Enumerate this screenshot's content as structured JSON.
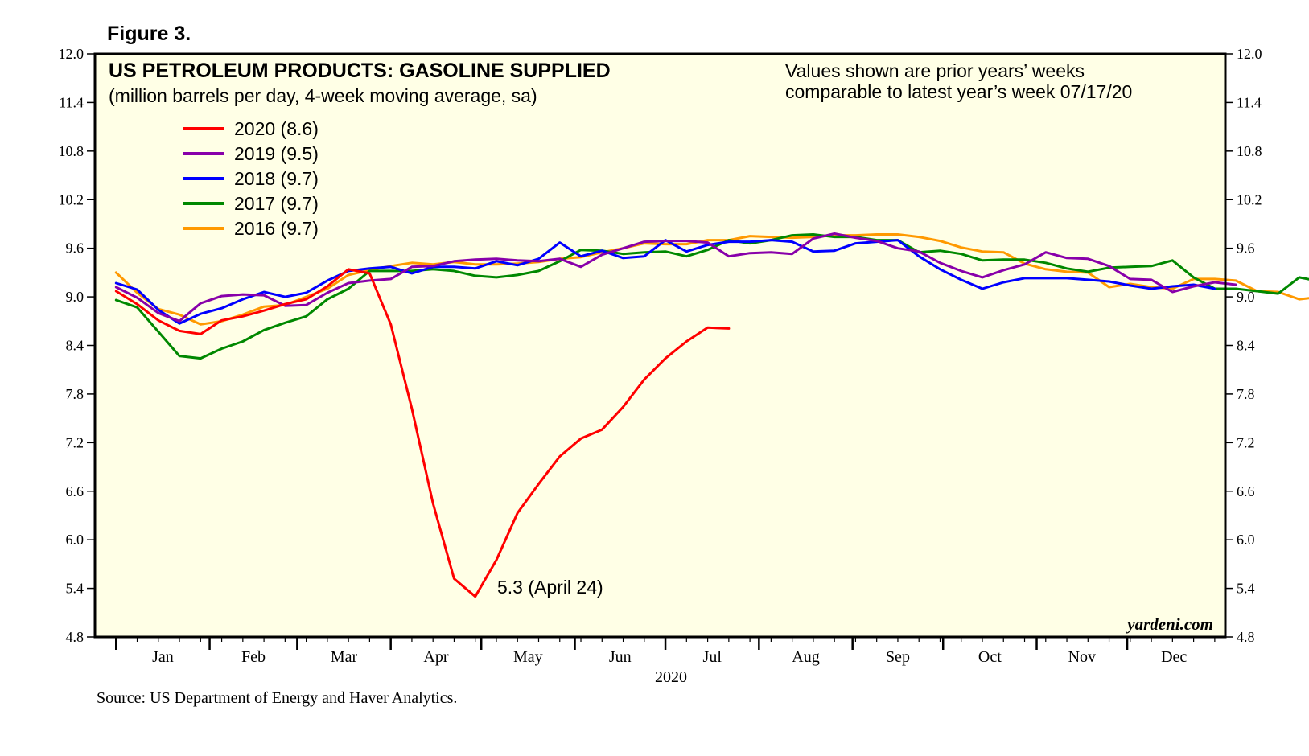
{
  "figure_label": "Figure 3.",
  "source": "Source: US Department of Energy and Haver Analytics.",
  "brand": "yardeni.com",
  "colors": {
    "plot_background": "#FFFFE6",
    "axis": "#000000"
  },
  "chart_data": {
    "type": "line",
    "title": "US PETROLEUM PRODUCTS: GASOLINE SUPPLIED",
    "subtitle": "(million barrels per day, 4-week moving average, sa)",
    "note": [
      "Values shown are prior years’ weeks",
      "comparable to latest year’s week 07/17/20"
    ],
    "annotation": {
      "text": "5.3 (April 24)",
      "week": 17,
      "value": 5.3
    },
    "xlabel": "2020",
    "x_unit": "week of year",
    "xlim": [
      0,
      53.5
    ],
    "ylim": [
      4.8,
      12.0
    ],
    "yticks": [
      "4.8",
      "5.4",
      "6.0",
      "6.6",
      "7.2",
      "7.8",
      "8.4",
      "9.0",
      "9.6",
      "10.2",
      "10.8",
      "11.4",
      "12.0"
    ],
    "months": [
      "Jan",
      "Feb",
      "Mar",
      "Apr",
      "May",
      "Jun",
      "Jul",
      "Aug",
      "Sep",
      "Oct",
      "Nov",
      "Dec"
    ],
    "legend": {
      "placement": "top-left"
    },
    "grid": false,
    "series": [
      {
        "name": "2016 (9.7)",
        "color": "#FF9900",
        "start_week": 1,
        "values": [
          9.3,
          9.05,
          8.85,
          8.78,
          8.66,
          8.7,
          8.78,
          8.88,
          8.9,
          9.0,
          9.1,
          9.27,
          9.33,
          9.38,
          9.42,
          9.4,
          9.43,
          9.4,
          9.4,
          9.41,
          9.43,
          9.47,
          9.49,
          9.55,
          9.6,
          9.66,
          9.65,
          9.65,
          9.7,
          9.7,
          9.75,
          9.74,
          9.73,
          9.74,
          9.76,
          9.76,
          9.77,
          9.77,
          9.74,
          9.69,
          9.61,
          9.56,
          9.55,
          9.41,
          9.34,
          9.31,
          9.3,
          9.12,
          9.16,
          9.12,
          9.1,
          9.22,
          9.22,
          9.2,
          9.07,
          9.06,
          8.97,
          9.0,
          9.05
        ]
      },
      {
        "name": "2017 (9.7)",
        "color": "#008800",
        "start_week": 1,
        "values": [
          8.96,
          8.87,
          8.57,
          8.27,
          8.24,
          8.36,
          8.45,
          8.59,
          8.68,
          8.76,
          8.97,
          9.1,
          9.32,
          9.32,
          9.32,
          9.34,
          9.32,
          9.26,
          9.24,
          9.27,
          9.32,
          9.44,
          9.58,
          9.57,
          9.53,
          9.55,
          9.56,
          9.5,
          9.58,
          9.7,
          9.66,
          9.7,
          9.76,
          9.77,
          9.74,
          9.74,
          9.7,
          9.7,
          9.55,
          9.57,
          9.53,
          9.45,
          9.46,
          9.46,
          9.42,
          9.35,
          9.31,
          9.36,
          9.37,
          9.38,
          9.45,
          9.24,
          9.1,
          9.1,
          9.07,
          9.04,
          9.24,
          9.19
        ]
      },
      {
        "name": "2018 (9.7)",
        "color": "#0000FF",
        "start_week": 1,
        "values": [
          9.17,
          9.09,
          8.84,
          8.67,
          8.79,
          8.86,
          8.97,
          9.06,
          9.0,
          9.05,
          9.2,
          9.32,
          9.35,
          9.37,
          9.29,
          9.37,
          9.37,
          9.35,
          9.44,
          9.39,
          9.47,
          9.67,
          9.5,
          9.57,
          9.48,
          9.5,
          9.7,
          9.56,
          9.64,
          9.68,
          9.68,
          9.7,
          9.68,
          9.56,
          9.57,
          9.66,
          9.68,
          9.7,
          9.5,
          9.34,
          9.21,
          9.1,
          9.18,
          9.23,
          9.23,
          9.23,
          9.21,
          9.19,
          9.14,
          9.1,
          9.13,
          9.15,
          9.1
        ]
      },
      {
        "name": "2019 (9.5)",
        "color": "#8800AA",
        "start_week": 1,
        "values": [
          9.12,
          8.99,
          8.8,
          8.7,
          8.92,
          9.01,
          9.03,
          9.02,
          8.89,
          8.9,
          9.05,
          9.17,
          9.2,
          9.22,
          9.37,
          9.38,
          9.44,
          9.46,
          9.47,
          9.45,
          9.44,
          9.47,
          9.37,
          9.52,
          9.6,
          9.68,
          9.69,
          9.69,
          9.67,
          9.5,
          9.54,
          9.55,
          9.53,
          9.72,
          9.78,
          9.73,
          9.69,
          9.6,
          9.56,
          9.42,
          9.32,
          9.24,
          9.33,
          9.4,
          9.55,
          9.48,
          9.47,
          9.38,
          9.22,
          9.21,
          9.06,
          9.13,
          9.18,
          9.15
        ]
      },
      {
        "name": "2020 (8.6)",
        "color": "#FF0000",
        "start_week": 1,
        "values": [
          9.07,
          8.91,
          8.71,
          8.58,
          8.54,
          8.71,
          8.76,
          8.83,
          8.91,
          8.97,
          9.13,
          9.34,
          9.29,
          8.66,
          7.62,
          6.45,
          5.52,
          5.3,
          5.75,
          6.33,
          6.69,
          7.03,
          7.25,
          7.36,
          7.64,
          7.98,
          8.24,
          8.45,
          8.62,
          8.61
        ]
      }
    ]
  }
}
